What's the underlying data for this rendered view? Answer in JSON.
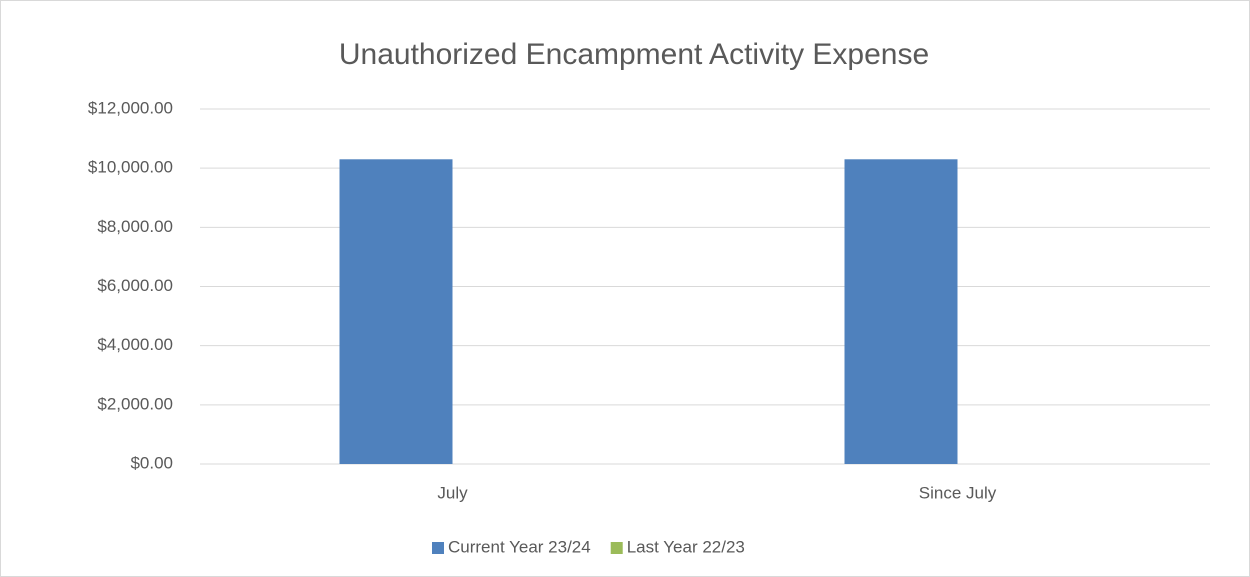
{
  "chart_data": {
    "type": "bar",
    "title": "Unauthorized Encampment Activity Expense",
    "categories": [
      "July",
      "Since July"
    ],
    "series": [
      {
        "name": "Current Year 23/24",
        "color": "#4f81bd",
        "values": [
          10300,
          10300
        ]
      },
      {
        "name": "Last Year 22/23",
        "color": "#9bbb59",
        "values": [
          0,
          0
        ]
      }
    ],
    "ylim": [
      0,
      12000
    ],
    "yticks": [
      {
        "value": 0,
        "label": "$0.00"
      },
      {
        "value": 2000,
        "label": "$2,000.00"
      },
      {
        "value": 4000,
        "label": "$4,000.00"
      },
      {
        "value": 6000,
        "label": "$6,000.00"
      },
      {
        "value": 8000,
        "label": "$8,000.00"
      },
      {
        "value": 10000,
        "label": "$10,000.00"
      },
      {
        "value": 12000,
        "label": "$12,000.00"
      }
    ],
    "grid": true,
    "legend": "bottom"
  }
}
